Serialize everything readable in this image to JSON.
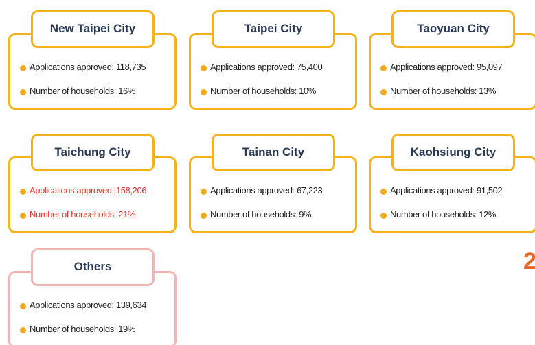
{
  "cards": [
    {
      "title": "New Taipei City",
      "color": "#f5b31a",
      "text_color": "#1f1f1f",
      "items": [
        "Applications approved: 118,735",
        "Number of households: 16%"
      ]
    },
    {
      "title": "Taipei City",
      "color": "#f5b31a",
      "text_color": "#1f1f1f",
      "items": [
        "Applications approved: 75,400",
        "Number of households: 10%"
      ]
    },
    {
      "title": "Taoyuan City",
      "color": "#f5b31a",
      "text_color": "#1f1f1f",
      "items": [
        "Applications approved: 95,097",
        "Number of households: 13%"
      ]
    },
    {
      "title": "Taichung City",
      "color": "#f5b31a",
      "text_color": "#e8332a",
      "items": [
        "Applications approved: 158,206",
        "Number of households: 21%"
      ]
    },
    {
      "title": "Tainan City",
      "color": "#f5b31a",
      "text_color": "#1f1f1f",
      "items": [
        "Applications approved: 67,223",
        "Number of households: 9%"
      ]
    },
    {
      "title": "Kaohsiung City",
      "color": "#f5b31a",
      "text_color": "#1f1f1f",
      "items": [
        "Applications approved: 91,502",
        "Number of households: 12%"
      ]
    },
    {
      "title": "Others",
      "color": "#f3b5b3",
      "text_color": "#1f1f1f",
      "items": [
        "Applications approved: 139,634",
        "Number of households: 19%"
      ]
    }
  ],
  "fragment": "2"
}
